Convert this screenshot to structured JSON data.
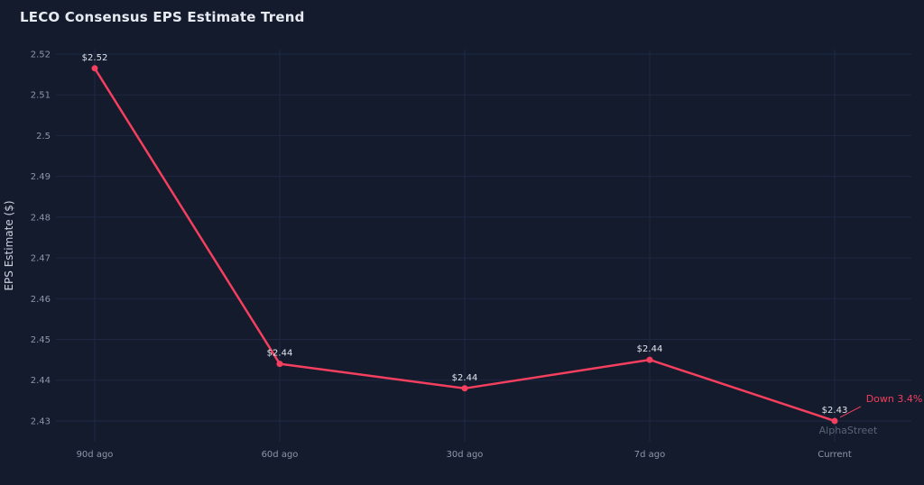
{
  "title": "LECO Consensus EPS Estimate Trend",
  "annotation": "Down 3.4%",
  "watermark": "AlphaStreet",
  "colors": {
    "background": "#131b2d",
    "gridline": "#1e2842",
    "line": "#f43f5e",
    "tick_text": "#8d95a8",
    "point_label_text": "#e2e6ee",
    "annotation_text": "#f43f5e",
    "watermark_text": "#5a6377"
  },
  "chart_data": {
    "type": "line",
    "title": "LECO Consensus EPS Estimate Trend",
    "categories": [
      "90d ago",
      "60d ago",
      "30d ago",
      "7d ago",
      "Current"
    ],
    "values": [
      2.5165,
      2.444,
      2.438,
      2.445,
      2.43
    ],
    "point_labels": [
      "$2.52",
      "$2.44",
      "$2.44",
      "$2.44",
      "$2.43"
    ],
    "xlabel": "",
    "ylabel": "EPS Estimate ($)",
    "ytick_labels": [
      "2.52",
      "2.51",
      "2.5",
      "2.49",
      "2.48",
      "2.47",
      "2.46",
      "2.45",
      "2.44",
      "2.43"
    ],
    "ylim": [
      2.4249,
      2.5211
    ],
    "grid": true,
    "legend": false,
    "line_color": "#f43f5e",
    "annotation": "Down 3.4%",
    "change_percent": -3.4
  }
}
